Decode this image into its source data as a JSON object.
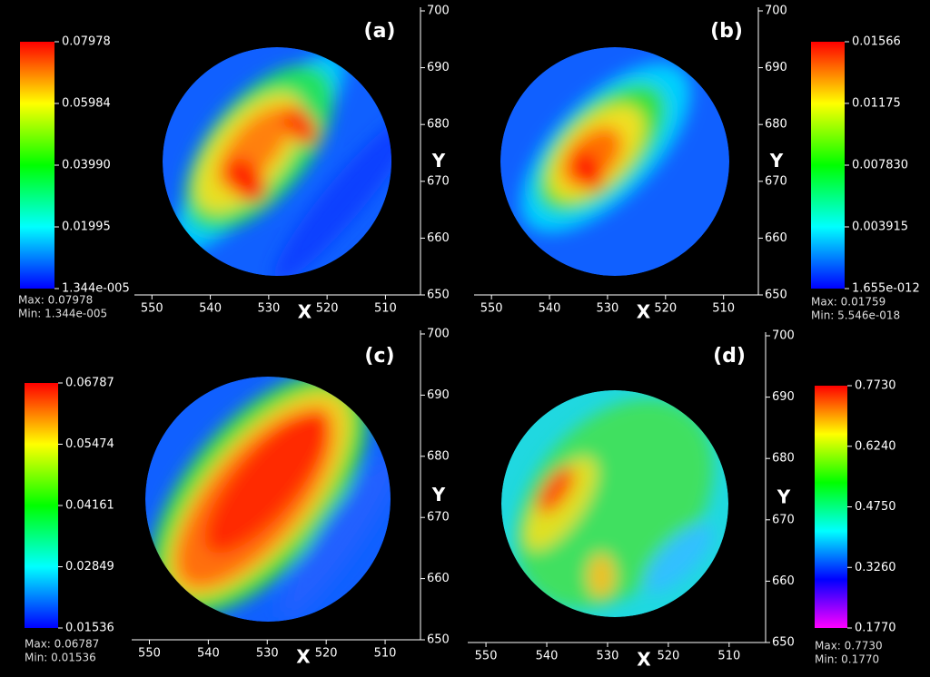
{
  "chart_data": [
    {
      "type": "heatmap",
      "label": "(a)",
      "xlabel": "X",
      "ylabel": "Y",
      "xlim": [
        553,
        504
      ],
      "xticks": [
        550,
        540,
        530,
        520,
        510
      ],
      "ylim": [
        650,
        700
      ],
      "yticks": [
        650,
        660,
        670,
        680,
        690,
        700
      ],
      "colormap": [
        "#0000ff",
        "#00ffff",
        "#00ff00",
        "#ffff00",
        "#ff0000"
      ],
      "colorbar_ticks": [
        {
          "value": 1.344e-05,
          "label": "1.344e-005"
        },
        0.01995,
        {
          "value": 0.0399,
          "label": "0.03990"
        },
        0.05984,
        0.07978
      ],
      "max_label": "Max: 0.07978",
      "min_label": "Min: 1.344e-005"
    },
    {
      "type": "heatmap",
      "label": "(b)",
      "xlabel": "X",
      "ylabel": "Y",
      "xlim": [
        553,
        504
      ],
      "xticks": [
        550,
        540,
        530,
        520,
        510
      ],
      "ylim": [
        650,
        700
      ],
      "yticks": [
        650,
        660,
        670,
        680,
        690,
        700
      ],
      "colormap": [
        "#0000ff",
        "#00ffff",
        "#00ff00",
        "#ffff00",
        "#ff0000"
      ],
      "colorbar_ticks": [
        {
          "value": 1.655e-12,
          "label": "1.655e-012"
        },
        0.003915,
        {
          "value": 0.00783,
          "label": "0.007830"
        },
        0.01175,
        0.01566
      ],
      "max_label": "Max: 0.01759",
      "min_label": "Min: 5.546e-018"
    },
    {
      "type": "heatmap",
      "label": "(c)",
      "xlabel": "X",
      "ylabel": "Y",
      "xlim": [
        553,
        504
      ],
      "xticks": [
        550,
        540,
        530,
        520,
        510
      ],
      "ylim": [
        650,
        700
      ],
      "yticks": [
        650,
        660,
        670,
        680,
        690,
        700
      ],
      "colormap": [
        "#0000ff",
        "#00ffff",
        "#00ff00",
        "#ffff00",
        "#ff0000"
      ],
      "colorbar_ticks": [
        0.01536,
        0.02849,
        0.04161,
        0.05474,
        0.06787
      ],
      "max_label": "Max: 0.06787",
      "min_label": "Min: 0.01536"
    },
    {
      "type": "heatmap",
      "label": "(d)",
      "xlabel": "X",
      "ylabel": "Y",
      "xlim": [
        553,
        504
      ],
      "xticks": [
        550,
        540,
        530,
        520,
        510
      ],
      "ylim": [
        650,
        700
      ],
      "yticks": [
        650,
        660,
        670,
        680,
        690,
        700
      ],
      "colormap": [
        "#ff00ff",
        "#0000ff",
        "#00ffff",
        "#00ff00",
        "#ffff00",
        "#ff0000"
      ],
      "colorbar_ticks": [
        {
          "value": 0.177,
          "label": "0.1770"
        },
        {
          "value": 0.326,
          "label": "0.3260"
        },
        {
          "value": 0.475,
          "label": "0.4750"
        },
        {
          "value": 0.624,
          "label": "0.6240"
        },
        {
          "value": 0.773,
          "label": "0.7730"
        }
      ],
      "max_label": "Max: 0.7730",
      "min_label": "Min: 0.1770"
    }
  ]
}
